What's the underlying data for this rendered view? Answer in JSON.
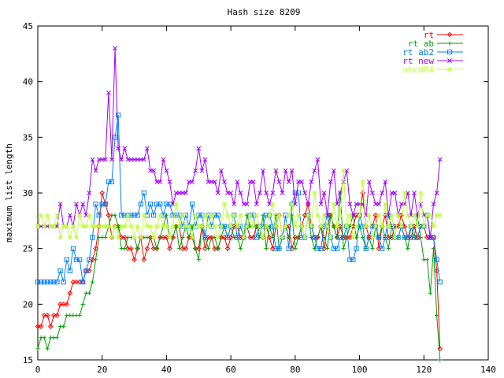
{
  "chart_data": {
    "type": "line",
    "title": "Hash size 8209",
    "xlabel": "",
    "ylabel": "maximum list length",
    "xlim": [
      0,
      140
    ],
    "ylim": [
      15,
      45
    ],
    "xticks": [
      0,
      20,
      40,
      60,
      80,
      100,
      120,
      140
    ],
    "yticks": [
      15,
      20,
      25,
      30,
      35,
      40,
      45
    ],
    "grid": false,
    "legend_position": "top-right",
    "series": [
      {
        "name": "rt",
        "color": "#ff0000",
        "marker": "diamond",
        "x": [
          0,
          1,
          2,
          3,
          4,
          5,
          6,
          7,
          8,
          9,
          10,
          11,
          12,
          13,
          14,
          15,
          16,
          17,
          18,
          19,
          20,
          21,
          22,
          23,
          24,
          25,
          26,
          27,
          28,
          29,
          30,
          31,
          32,
          33,
          34,
          35,
          36,
          37,
          38,
          39,
          40,
          41,
          42,
          43,
          44,
          45,
          46,
          47,
          48,
          49,
          50,
          51,
          52,
          53,
          54,
          55,
          56,
          57,
          58,
          59,
          60,
          61,
          62,
          63,
          64,
          65,
          66,
          67,
          68,
          69,
          70,
          71,
          72,
          73,
          74,
          75,
          76,
          77,
          78,
          79,
          80,
          81,
          82,
          83,
          84,
          85,
          86,
          87,
          88,
          89,
          90,
          91,
          92,
          93,
          94,
          95,
          96,
          97,
          98,
          99,
          100,
          101,
          102,
          103,
          104,
          105,
          106,
          107,
          108,
          109,
          110,
          111,
          112,
          113,
          114,
          115,
          116,
          117,
          118,
          119,
          120,
          121,
          122,
          123,
          124,
          125
        ],
        "y": [
          18,
          18,
          19,
          19,
          18,
          19,
          19,
          20,
          20,
          20,
          21,
          22,
          22,
          22,
          22,
          23,
          23,
          24,
          25,
          27,
          30,
          29,
          28,
          26,
          27,
          27,
          26,
          26,
          25,
          25,
          24,
          25,
          26,
          24,
          25,
          26,
          25,
          25,
          26,
          26,
          26,
          25,
          26,
          27,
          27,
          25,
          25,
          26,
          26,
          25,
          25,
          27,
          25,
          26,
          26,
          25,
          25,
          26,
          26,
          25,
          26,
          27,
          27,
          26,
          26,
          27,
          26,
          26,
          27,
          27,
          26,
          27,
          26,
          25,
          27,
          28,
          26,
          27,
          27,
          25,
          26,
          26,
          27,
          28,
          29,
          27,
          26,
          26,
          27,
          25,
          27,
          28,
          27,
          26,
          27,
          26,
          26,
          26,
          27,
          28,
          28,
          30,
          27,
          26,
          27,
          28,
          25,
          27,
          28,
          26,
          26,
          27,
          27,
          28,
          27,
          26,
          26,
          27,
          26,
          27,
          27,
          26,
          26,
          26,
          23,
          16
        ]
      },
      {
        "name": "rt ab",
        "color": "#00a000",
        "marker": "plus",
        "x": [
          0,
          1,
          2,
          3,
          4,
          5,
          6,
          7,
          8,
          9,
          10,
          11,
          12,
          13,
          14,
          15,
          16,
          17,
          18,
          19,
          20,
          21,
          22,
          23,
          24,
          25,
          26,
          27,
          28,
          29,
          30,
          31,
          32,
          33,
          34,
          35,
          36,
          37,
          38,
          39,
          40,
          41,
          42,
          43,
          44,
          45,
          46,
          47,
          48,
          49,
          50,
          51,
          52,
          53,
          54,
          55,
          56,
          57,
          58,
          59,
          60,
          61,
          62,
          63,
          64,
          65,
          66,
          67,
          68,
          69,
          70,
          71,
          72,
          73,
          74,
          75,
          76,
          77,
          78,
          79,
          80,
          81,
          82,
          83,
          84,
          85,
          86,
          87,
          88,
          89,
          90,
          91,
          92,
          93,
          94,
          95,
          96,
          97,
          98,
          99,
          100,
          101,
          102,
          103,
          104,
          105,
          106,
          107,
          108,
          109,
          110,
          111,
          112,
          113,
          114,
          115,
          116,
          117,
          118,
          119,
          120,
          121,
          122,
          123,
          124,
          125
        ],
        "y": [
          16,
          17,
          17,
          16,
          17,
          17,
          17,
          18,
          18,
          19,
          19,
          19,
          19,
          19,
          20,
          21,
          21,
          22,
          24,
          26,
          26,
          26,
          27,
          28,
          28,
          27,
          25,
          25,
          26,
          26,
          26,
          25,
          26,
          26,
          26,
          26,
          26,
          25,
          26,
          27,
          28,
          26,
          26,
          27,
          25,
          26,
          27,
          26,
          27,
          25,
          24,
          27,
          26,
          25,
          26,
          26,
          25,
          26,
          27,
          26,
          27,
          26,
          26,
          25,
          26,
          28,
          27,
          27,
          27,
          26,
          28,
          25,
          27,
          26,
          28,
          25,
          26,
          27,
          26,
          28,
          25,
          26,
          27,
          26,
          28,
          26,
          25,
          26,
          27,
          26,
          25,
          28,
          27,
          26,
          30,
          25,
          26,
          27,
          28,
          26,
          27,
          26,
          25,
          26,
          25,
          27,
          26,
          27,
          26,
          25,
          27,
          26,
          26,
          27,
          26,
          25,
          27,
          26,
          28,
          26,
          24,
          24,
          21,
          25,
          19,
          15
        ]
      },
      {
        "name": "rt ab2",
        "color": "#0080ff",
        "marker": "square",
        "x": [
          0,
          1,
          2,
          3,
          4,
          5,
          6,
          7,
          8,
          9,
          10,
          11,
          12,
          13,
          14,
          15,
          16,
          17,
          18,
          19,
          20,
          21,
          22,
          23,
          24,
          25,
          26,
          27,
          28,
          29,
          30,
          31,
          32,
          33,
          34,
          35,
          36,
          37,
          38,
          39,
          40,
          41,
          42,
          43,
          44,
          45,
          46,
          47,
          48,
          49,
          50,
          51,
          52,
          53,
          54,
          55,
          56,
          57,
          58,
          59,
          60,
          61,
          62,
          63,
          64,
          65,
          66,
          67,
          68,
          69,
          70,
          71,
          72,
          73,
          74,
          75,
          76,
          77,
          78,
          79,
          80,
          81,
          82,
          83,
          84,
          85,
          86,
          87,
          88,
          89,
          90,
          91,
          92,
          93,
          94,
          95,
          96,
          97,
          98,
          99,
          100,
          101,
          102,
          103,
          104,
          105,
          106,
          107,
          108,
          109,
          110,
          111,
          112,
          113,
          114,
          115,
          116,
          117,
          118,
          119,
          120,
          121,
          122,
          123,
          124,
          125
        ],
        "y": [
          22,
          22,
          22,
          22,
          22,
          22,
          22,
          23,
          22,
          24,
          23,
          25,
          24,
          24,
          22,
          23,
          24,
          26,
          29,
          28,
          29,
          29,
          31,
          31,
          35,
          37,
          28,
          28,
          28,
          28,
          28,
          28,
          29,
          30,
          28,
          29,
          28,
          29,
          29,
          28,
          29,
          29,
          28,
          28,
          28,
          27,
          28,
          27,
          29,
          27,
          28,
          28,
          26,
          28,
          27,
          28,
          28,
          27,
          27,
          26,
          27,
          28,
          26,
          27,
          26,
          27,
          28,
          28,
          26,
          27,
          27,
          28,
          28,
          27,
          25,
          25,
          26,
          28,
          25,
          29,
          30,
          30,
          26,
          26,
          28,
          27,
          26,
          25,
          25,
          27,
          28,
          26,
          25,
          25,
          26,
          26,
          27,
          24,
          24,
          25,
          28,
          27,
          25,
          26,
          27,
          27,
          26,
          25,
          26,
          28,
          27,
          26,
          26,
          27,
          26,
          26,
          27,
          26,
          26,
          27,
          27,
          28,
          26,
          26,
          24,
          22
        ]
      },
      {
        "name": "rt new",
        "color": "#a000ff",
        "marker": "cross",
        "x": [
          0,
          1,
          2,
          3,
          4,
          5,
          6,
          7,
          8,
          9,
          10,
          11,
          12,
          13,
          14,
          15,
          16,
          17,
          18,
          19,
          20,
          21,
          22,
          23,
          24,
          25,
          26,
          27,
          28,
          29,
          30,
          31,
          32,
          33,
          34,
          35,
          36,
          37,
          38,
          39,
          40,
          41,
          42,
          43,
          44,
          45,
          46,
          47,
          48,
          49,
          50,
          51,
          52,
          53,
          54,
          55,
          56,
          57,
          58,
          59,
          60,
          61,
          62,
          63,
          64,
          65,
          66,
          67,
          68,
          69,
          70,
          71,
          72,
          73,
          74,
          75,
          76,
          77,
          78,
          79,
          80,
          81,
          82,
          83,
          84,
          85,
          86,
          87,
          88,
          89,
          90,
          91,
          92,
          93,
          94,
          95,
          96,
          97,
          98,
          99,
          100,
          101,
          102,
          103,
          104,
          105,
          106,
          107,
          108,
          109,
          110,
          111,
          112,
          113,
          114,
          115,
          116,
          117,
          118,
          119,
          120,
          121,
          122,
          123,
          124,
          125
        ],
        "y": [
          27,
          27,
          27,
          27,
          27,
          27,
          27,
          29,
          27,
          27,
          28,
          27,
          29,
          28,
          29,
          28,
          30,
          33,
          32,
          33,
          33,
          33,
          39,
          33,
          43,
          34,
          33,
          34,
          33,
          33,
          33,
          33,
          33,
          33,
          34,
          32,
          32,
          31,
          31,
          33,
          32,
          31,
          29,
          30,
          30,
          30,
          30,
          31,
          31,
          32,
          34,
          32,
          33,
          31,
          31,
          31,
          30,
          32,
          31,
          30,
          30,
          29,
          31,
          30,
          29,
          29,
          31,
          31,
          29,
          30,
          32,
          30,
          29,
          30,
          32,
          31,
          30,
          32,
          31,
          32,
          29,
          31,
          31,
          30,
          29,
          31,
          32,
          33,
          29,
          30,
          28,
          31,
          32,
          29,
          30,
          31,
          32,
          29,
          28,
          29,
          29,
          29,
          28,
          31,
          30,
          29,
          29,
          30,
          31,
          28,
          30,
          30,
          28,
          29,
          29,
          30,
          28,
          30,
          28,
          29,
          28,
          28,
          26,
          29,
          30,
          33
        ]
      },
      {
        "name": "abcd64",
        "color": "#c0ff40",
        "marker": "star",
        "x": [
          0,
          1,
          2,
          3,
          4,
          5,
          6,
          7,
          8,
          9,
          10,
          11,
          12,
          13,
          14,
          15,
          16,
          17,
          18,
          19,
          20,
          21,
          22,
          23,
          24,
          25,
          26,
          27,
          28,
          29,
          30,
          31,
          32,
          33,
          34,
          35,
          36,
          37,
          38,
          39,
          40,
          41,
          42,
          43,
          44,
          45,
          46,
          47,
          48,
          49,
          50,
          51,
          52,
          53,
          54,
          55,
          56,
          57,
          58,
          59,
          60,
          61,
          62,
          63,
          64,
          65,
          66,
          67,
          68,
          69,
          70,
          71,
          72,
          73,
          74,
          75,
          76,
          77,
          78,
          79,
          80,
          81,
          82,
          83,
          84,
          85,
          86,
          87,
          88,
          89,
          90,
          91,
          92,
          93,
          94,
          95,
          96,
          97,
          98,
          99,
          100,
          101,
          102,
          103,
          104,
          105,
          106,
          107,
          108,
          109,
          110,
          111,
          112,
          113,
          114,
          115,
          116,
          117,
          118,
          119,
          120,
          121,
          122,
          123,
          124,
          125
        ],
        "y": [
          27,
          28,
          27,
          28,
          27,
          27,
          28,
          26,
          27,
          27,
          26,
          27,
          26,
          28,
          27,
          27,
          28,
          27,
          27,
          27,
          27,
          27,
          27,
          26,
          27,
          26,
          27,
          27,
          28,
          27,
          26,
          27,
          26,
          28,
          27,
          27,
          26,
          27,
          28,
          27,
          27,
          26,
          27,
          29,
          27,
          28,
          27,
          27,
          26,
          28,
          27,
          27,
          28,
          27,
          28,
          27,
          26,
          27,
          29,
          28,
          27,
          28,
          27,
          28,
          26,
          27,
          28,
          27,
          28,
          27,
          26,
          27,
          28,
          29,
          27,
          28,
          26,
          27,
          28,
          29,
          27,
          28,
          27,
          26,
          28,
          27,
          30,
          28,
          27,
          28,
          27,
          26,
          29,
          27,
          28,
          32,
          27,
          28,
          26,
          27,
          28,
          31,
          27,
          28,
          26,
          27,
          28,
          27,
          29,
          27,
          28,
          26,
          28,
          27,
          30,
          28,
          27,
          28,
          27,
          30,
          27,
          28,
          28,
          27,
          28,
          28
        ]
      }
    ]
  }
}
